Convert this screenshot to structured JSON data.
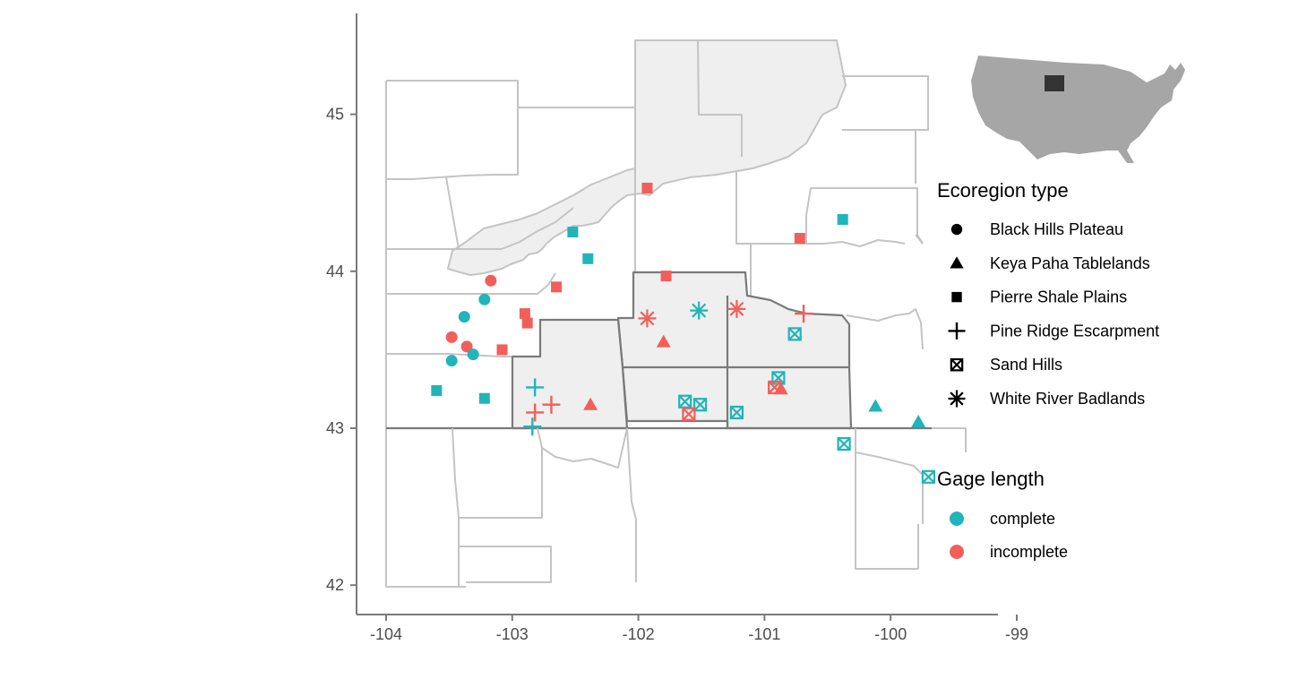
{
  "axes": {
    "x_ticks": [
      {
        "value": -104,
        "label": "-104"
      },
      {
        "value": -103,
        "label": "-103"
      },
      {
        "value": -102,
        "label": "-102"
      },
      {
        "value": -101,
        "label": "-101"
      },
      {
        "value": -100,
        "label": "-100"
      },
      {
        "value": -99,
        "label": "-99"
      }
    ],
    "y_ticks": [
      {
        "value": 42,
        "label": "42"
      },
      {
        "value": 43,
        "label": "43"
      },
      {
        "value": 44,
        "label": "44"
      },
      {
        "value": 45,
        "label": "45"
      }
    ],
    "xlim": [
      -104.25,
      -99
    ],
    "ylim": [
      41.87,
      45.63
    ]
  },
  "colors": {
    "complete": "#1fb5ba",
    "incomplete": "#f15f5a",
    "shaded_county": "#efefef",
    "county_border": "#c4c4c4",
    "state_border": "#7a7a7a",
    "inset_us": "#a6a6a6",
    "inset_highlight": "#333333"
  },
  "legend_ecoregion": {
    "title": "Ecoregion type",
    "items": [
      {
        "label": "Black Hills Plateau",
        "shape": "circle"
      },
      {
        "label": "Keya Paha Tablelands",
        "shape": "triangle"
      },
      {
        "label": "Pierre Shale Plains",
        "shape": "square"
      },
      {
        "label": "Pine Ridge Escarpment",
        "shape": "plus"
      },
      {
        "label": "Sand Hills",
        "shape": "boxx"
      },
      {
        "label": "White River Badlands",
        "shape": "asterisk"
      }
    ]
  },
  "legend_gage": {
    "title": "Gage length",
    "items": [
      {
        "label": "complete",
        "key": "complete"
      },
      {
        "label": "incomplete",
        "key": "incomplete"
      }
    ]
  },
  "chart_data": {
    "type": "scatter",
    "points": [
      {
        "lon": -103.17,
        "lat": 43.94,
        "shape": "circle",
        "gage": "incomplete"
      },
      {
        "lon": -103.22,
        "lat": 43.82,
        "shape": "circle",
        "gage": "complete"
      },
      {
        "lon": -103.38,
        "lat": 43.71,
        "shape": "circle",
        "gage": "complete"
      },
      {
        "lon": -103.48,
        "lat": 43.58,
        "shape": "circle",
        "gage": "incomplete"
      },
      {
        "lon": -103.36,
        "lat": 43.52,
        "shape": "circle",
        "gage": "incomplete"
      },
      {
        "lon": -103.31,
        "lat": 43.47,
        "shape": "circle",
        "gage": "complete"
      },
      {
        "lon": -103.48,
        "lat": 43.43,
        "shape": "circle",
        "gage": "complete"
      },
      {
        "lon": -102.38,
        "lat": 43.15,
        "shape": "triangle",
        "gage": "incomplete"
      },
      {
        "lon": -101.8,
        "lat": 43.55,
        "shape": "triangle",
        "gage": "incomplete"
      },
      {
        "lon": -100.87,
        "lat": 43.25,
        "shape": "triangle",
        "gage": "incomplete"
      },
      {
        "lon": -100.12,
        "lat": 43.14,
        "shape": "triangle",
        "gage": "complete"
      },
      {
        "lon": -99.78,
        "lat": 43.04,
        "shape": "triangle",
        "gage": "complete"
      },
      {
        "lon": -101.93,
        "lat": 44.53,
        "shape": "square",
        "gage": "incomplete"
      },
      {
        "lon": -102.52,
        "lat": 44.25,
        "shape": "square",
        "gage": "complete"
      },
      {
        "lon": -102.4,
        "lat": 44.08,
        "shape": "square",
        "gage": "complete"
      },
      {
        "lon": -102.65,
        "lat": 43.9,
        "shape": "square",
        "gage": "incomplete"
      },
      {
        "lon": -101.78,
        "lat": 43.97,
        "shape": "square",
        "gage": "incomplete"
      },
      {
        "lon": -102.9,
        "lat": 43.73,
        "shape": "square",
        "gage": "incomplete"
      },
      {
        "lon": -102.88,
        "lat": 43.67,
        "shape": "square",
        "gage": "incomplete"
      },
      {
        "lon": -103.08,
        "lat": 43.5,
        "shape": "square",
        "gage": "incomplete"
      },
      {
        "lon": -103.6,
        "lat": 43.24,
        "shape": "square",
        "gage": "complete"
      },
      {
        "lon": -103.22,
        "lat": 43.19,
        "shape": "square",
        "gage": "complete"
      },
      {
        "lon": -100.72,
        "lat": 44.21,
        "shape": "square",
        "gage": "incomplete"
      },
      {
        "lon": -100.38,
        "lat": 44.33,
        "shape": "square",
        "gage": "complete"
      },
      {
        "lon": -102.82,
        "lat": 43.26,
        "shape": "plus",
        "gage": "complete"
      },
      {
        "lon": -102.69,
        "lat": 43.15,
        "shape": "plus",
        "gage": "incomplete"
      },
      {
        "lon": -102.82,
        "lat": 43.1,
        "shape": "plus",
        "gage": "incomplete"
      },
      {
        "lon": -102.84,
        "lat": 43.01,
        "shape": "plus",
        "gage": "complete"
      },
      {
        "lon": -100.69,
        "lat": 43.73,
        "shape": "plus",
        "gage": "incomplete"
      },
      {
        "lon": -101.93,
        "lat": 43.7,
        "shape": "asterisk",
        "gage": "incomplete"
      },
      {
        "lon": -101.52,
        "lat": 43.75,
        "shape": "asterisk",
        "gage": "complete"
      },
      {
        "lon": -101.22,
        "lat": 43.76,
        "shape": "asterisk",
        "gage": "incomplete"
      },
      {
        "lon": -100.76,
        "lat": 43.6,
        "shape": "boxx",
        "gage": "complete"
      },
      {
        "lon": -100.89,
        "lat": 43.32,
        "shape": "boxx",
        "gage": "complete"
      },
      {
        "lon": -100.92,
        "lat": 43.26,
        "shape": "boxx",
        "gage": "incomplete"
      },
      {
        "lon": -101.63,
        "lat": 43.17,
        "shape": "boxx",
        "gage": "complete"
      },
      {
        "lon": -101.51,
        "lat": 43.15,
        "shape": "boxx",
        "gage": "complete"
      },
      {
        "lon": -101.6,
        "lat": 43.09,
        "shape": "boxx",
        "gage": "incomplete"
      },
      {
        "lon": -101.22,
        "lat": 43.1,
        "shape": "boxx",
        "gage": "complete"
      },
      {
        "lon": -100.37,
        "lat": 42.9,
        "shape": "boxx",
        "gage": "complete"
      },
      {
        "lon": -99.7,
        "lat": 42.69,
        "shape": "boxx",
        "gage": "complete"
      }
    ]
  }
}
